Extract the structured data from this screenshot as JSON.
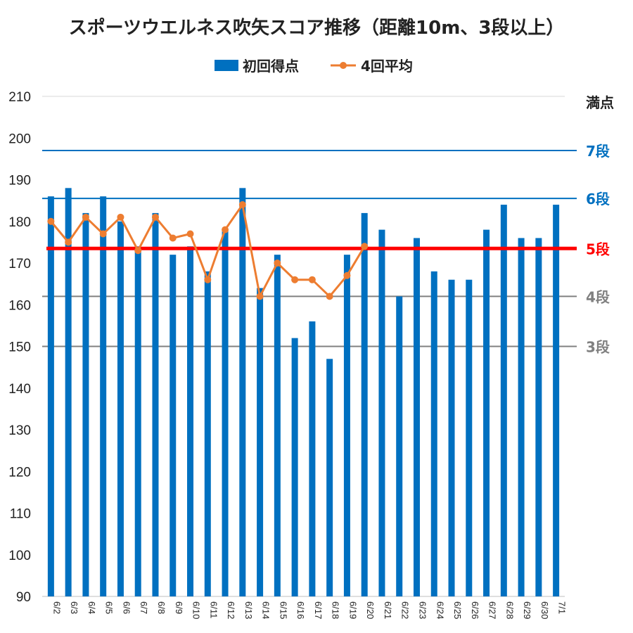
{
  "chart_data": {
    "type": "bar",
    "title": "スポーツウエルネス吹矢スコア推移（距離10m、3段以上）",
    "ylim": [
      90,
      210
    ],
    "yticks": [
      90,
      100,
      110,
      120,
      130,
      140,
      150,
      160,
      170,
      180,
      190,
      200,
      210
    ],
    "categories": [
      "6/2",
      "6/3",
      "6/4",
      "6/5",
      "6/6",
      "6/7",
      "6/8",
      "6/9",
      "6/10",
      "6/11",
      "6/12",
      "6/13",
      "6/14",
      "6/15",
      "6/16",
      "6/17",
      "6/18",
      "6/19",
      "6/20",
      "6/21",
      "6/22",
      "6/23",
      "6/24",
      "6/25",
      "6/26",
      "6/27",
      "6/28",
      "6/29",
      "6/30",
      "7/1"
    ],
    "series": [
      {
        "name": "初回得点",
        "type": "bar",
        "color": "#0070C0",
        "values": [
          186,
          188,
          182,
          186,
          180,
          174,
          182,
          172,
          174,
          168,
          178,
          188,
          164,
          172,
          152,
          156,
          147,
          172,
          182,
          178,
          162,
          176,
          168,
          166,
          166,
          178,
          184,
          176,
          176,
          184
        ]
      },
      {
        "name": "4回平均",
        "type": "line",
        "color": "#ED7D31",
        "values": [
          180,
          175,
          181,
          177,
          181,
          173,
          181,
          176,
          177,
          166,
          178,
          184,
          162,
          170,
          166,
          166,
          162,
          167,
          174,
          null,
          null,
          null,
          null,
          null,
          null,
          null,
          null,
          null,
          null,
          null
        ]
      }
    ],
    "reference_lines": [
      {
        "label": "満点",
        "value": null,
        "color": "#222222"
      },
      {
        "label": "7段",
        "value": 197,
        "color": "#0070C0"
      },
      {
        "label": "6段",
        "value": 185.5,
        "color": "#0070C0"
      },
      {
        "label": "5段",
        "value": 173.5,
        "color": "#FF0000"
      },
      {
        "label": "4段",
        "value": 162,
        "color": "#808080"
      },
      {
        "label": "3段",
        "value": 150,
        "color": "#808080"
      }
    ],
    "legend": "top-center",
    "grid": false
  }
}
